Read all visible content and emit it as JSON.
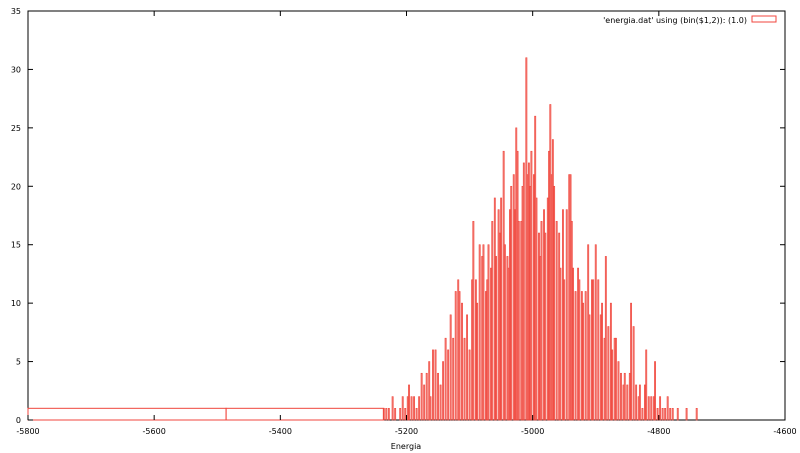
{
  "chart_data": {
    "type": "bar",
    "xlabel": "Energia",
    "ylabel": "",
    "xlim": [
      -5800,
      -4600
    ],
    "ylim": [
      0,
      35
    ],
    "x_ticks": [
      -5800,
      -5600,
      -5400,
      -5200,
      -5000,
      -4800,
      -4600
    ],
    "y_ticks": [
      0,
      5,
      10,
      15,
      20,
      25,
      30,
      35
    ],
    "bin_width": 2,
    "grid": false,
    "legend_position": "top-right",
    "series": [
      {
        "name": "'energia.dat' using (bin($1,2)): (1.0)",
        "color": "#f0463c",
        "outlier_bins": [
          [
            -5800,
            1
          ],
          [
            -5486,
            1
          ]
        ],
        "bins": [
          [
            -5236,
            1
          ],
          [
            -5232,
            1
          ],
          [
            -5228,
            1
          ],
          [
            -5222,
            2
          ],
          [
            -5218,
            1
          ],
          [
            -5210,
            1
          ],
          [
            -5206,
            2
          ],
          [
            -5202,
            1
          ],
          [
            -5198,
            2
          ],
          [
            -5196,
            3
          ],
          [
            -5192,
            2
          ],
          [
            -5188,
            2
          ],
          [
            -5184,
            1
          ],
          [
            -5180,
            2
          ],
          [
            -5176,
            4
          ],
          [
            -5172,
            3
          ],
          [
            -5168,
            4
          ],
          [
            -5164,
            5
          ],
          [
            -5162,
            2
          ],
          [
            -5158,
            6
          ],
          [
            -5154,
            6
          ],
          [
            -5150,
            4
          ],
          [
            -5146,
            3
          ],
          [
            -5142,
            5
          ],
          [
            -5138,
            7
          ],
          [
            -5134,
            6
          ],
          [
            -5130,
            9
          ],
          [
            -5126,
            7
          ],
          [
            -5122,
            11
          ],
          [
            -5118,
            12
          ],
          [
            -5116,
            11
          ],
          [
            -5112,
            10
          ],
          [
            -5108,
            7
          ],
          [
            -5104,
            9
          ],
          [
            -5100,
            6
          ],
          [
            -5096,
            12
          ],
          [
            -5094,
            17
          ],
          [
            -5090,
            12
          ],
          [
            -5088,
            10
          ],
          [
            -5084,
            15
          ],
          [
            -5080,
            14
          ],
          [
            -5078,
            15
          ],
          [
            -5074,
            11
          ],
          [
            -5072,
            12
          ],
          [
            -5070,
            15
          ],
          [
            -5066,
            13
          ],
          [
            -5064,
            17
          ],
          [
            -5060,
            19
          ],
          [
            -5058,
            14
          ],
          [
            -5054,
            18
          ],
          [
            -5052,
            16
          ],
          [
            -5050,
            19
          ],
          [
            -5046,
            23
          ],
          [
            -5044,
            15
          ],
          [
            -5040,
            14
          ],
          [
            -5038,
            13
          ],
          [
            -5036,
            18
          ],
          [
            -5034,
            20
          ],
          [
            -5030,
            21
          ],
          [
            -5028,
            18
          ],
          [
            -5026,
            25
          ],
          [
            -5024,
            23
          ],
          [
            -5022,
            17
          ],
          [
            -5018,
            17
          ],
          [
            -5016,
            20
          ],
          [
            -5014,
            22
          ],
          [
            -5010,
            31
          ],
          [
            -5008,
            21
          ],
          [
            -5006,
            22
          ],
          [
            -5004,
            20
          ],
          [
            -5002,
            23
          ],
          [
            -4998,
            21
          ],
          [
            -4996,
            26
          ],
          [
            -4994,
            19
          ],
          [
            -4990,
            16
          ],
          [
            -4988,
            14
          ],
          [
            -4986,
            17
          ],
          [
            -4982,
            18
          ],
          [
            -4980,
            16
          ],
          [
            -4976,
            19
          ],
          [
            -4974,
            23
          ],
          [
            -4972,
            27
          ],
          [
            -4970,
            21
          ],
          [
            -4968,
            24
          ],
          [
            -4966,
            20
          ],
          [
            -4962,
            17
          ],
          [
            -4958,
            16
          ],
          [
            -4956,
            13
          ],
          [
            -4952,
            18
          ],
          [
            -4950,
            12
          ],
          [
            -4946,
            18
          ],
          [
            -4942,
            21
          ],
          [
            -4940,
            21
          ],
          [
            -4938,
            17
          ],
          [
            -4936,
            13
          ],
          [
            -4932,
            11
          ],
          [
            -4928,
            13
          ],
          [
            -4926,
            12
          ],
          [
            -4922,
            11
          ],
          [
            -4920,
            10
          ],
          [
            -4916,
            11
          ],
          [
            -4912,
            15
          ],
          [
            -4910,
            9
          ],
          [
            -4906,
            12
          ],
          [
            -4904,
            12
          ],
          [
            -4900,
            15
          ],
          [
            -4896,
            12
          ],
          [
            -4892,
            9
          ],
          [
            -4890,
            10
          ],
          [
            -4886,
            7
          ],
          [
            -4884,
            14
          ],
          [
            -4880,
            8
          ],
          [
            -4876,
            10
          ],
          [
            -4874,
            6
          ],
          [
            -4870,
            7
          ],
          [
            -4868,
            7
          ],
          [
            -4864,
            5
          ],
          [
            -4860,
            4
          ],
          [
            -4856,
            3
          ],
          [
            -4854,
            4
          ],
          [
            -4850,
            3
          ],
          [
            -4846,
            4
          ],
          [
            -4844,
            10
          ],
          [
            -4840,
            8
          ],
          [
            -4836,
            3
          ],
          [
            -4832,
            2
          ],
          [
            -4830,
            3
          ],
          [
            -4826,
            1
          ],
          [
            -4822,
            3
          ],
          [
            -4820,
            6
          ],
          [
            -4816,
            2
          ],
          [
            -4812,
            2
          ],
          [
            -4808,
            2
          ],
          [
            -4806,
            5
          ],
          [
            -4802,
            1
          ],
          [
            -4798,
            2
          ],
          [
            -4794,
            1
          ],
          [
            -4790,
            1
          ],
          [
            -4786,
            2
          ],
          [
            -4782,
            1
          ],
          [
            -4778,
            1
          ],
          [
            -4770,
            1
          ],
          [
            -4756,
            1
          ],
          [
            -4740,
            1
          ]
        ]
      }
    ]
  }
}
